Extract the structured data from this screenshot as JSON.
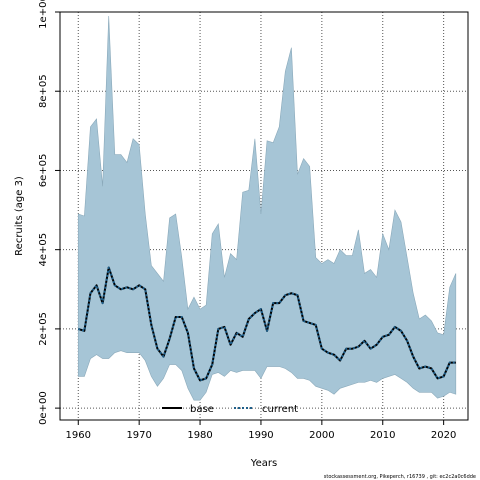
{
  "chart_data": {
    "type": "area",
    "title": "",
    "xlabel": "Years",
    "ylabel": "Recruits (age 3)",
    "xlim": [
      1957,
      2024
    ],
    "ylim": [
      -30000,
      1000000
    ],
    "x_ticks": [
      1960,
      1970,
      1980,
      1990,
      2000,
      2010,
      2020
    ],
    "x_tick_labels": [
      "1960",
      "1970",
      "1980",
      "1990",
      "2000",
      "2010",
      "2020"
    ],
    "y_ticks": [
      0,
      200000,
      400000,
      600000,
      800000,
      1000000
    ],
    "y_tick_labels": [
      "0e+00",
      "2e+05",
      "4e+05",
      "6e+05",
      "8e+05",
      "1e+06"
    ],
    "grid": true,
    "legend_position": "bottom-center",
    "colors": {
      "band": "#a6c5d6",
      "band_edge": "#8aa9ba",
      "base": "#000000",
      "current": "#1f5f8a"
    },
    "years": [
      1960,
      1961,
      1962,
      1963,
      1964,
      1965,
      1966,
      1967,
      1968,
      1969,
      1970,
      1971,
      1972,
      1973,
      1974,
      1975,
      1976,
      1977,
      1978,
      1979,
      1980,
      1981,
      1982,
      1983,
      1984,
      1985,
      1986,
      1987,
      1988,
      1989,
      1990,
      1991,
      1992,
      1993,
      1994,
      1995,
      1996,
      1997,
      1998,
      1999,
      2000,
      2001,
      2002,
      2003,
      2004,
      2005,
      2006,
      2007,
      2008,
      2009,
      2010,
      2011,
      2012,
      2013,
      2014,
      2015,
      2016,
      2017,
      2018,
      2019,
      2020,
      2021,
      2022
    ],
    "series": [
      {
        "name": "base",
        "style": "solid",
        "values": [
          200000,
          195000,
          290000,
          310000,
          265000,
          355000,
          310000,
          300000,
          305000,
          300000,
          310000,
          300000,
          210000,
          150000,
          130000,
          175000,
          230000,
          230000,
          190000,
          100000,
          70000,
          75000,
          110000,
          200000,
          205000,
          160000,
          190000,
          180000,
          225000,
          240000,
          250000,
          195000,
          265000,
          265000,
          285000,
          290000,
          285000,
          220000,
          215000,
          210000,
          150000,
          140000,
          135000,
          120000,
          150000,
          150000,
          155000,
          170000,
          150000,
          160000,
          180000,
          185000,
          205000,
          195000,
          170000,
          130000,
          100000,
          105000,
          100000,
          75000,
          80000,
          115000,
          115000
        ]
      },
      {
        "name": "current",
        "style": "dotted",
        "values": [
          200000,
          195000,
          290000,
          310000,
          265000,
          355000,
          310000,
          300000,
          305000,
          300000,
          310000,
          300000,
          210000,
          150000,
          130000,
          175000,
          230000,
          230000,
          190000,
          100000,
          70000,
          75000,
          110000,
          200000,
          205000,
          160000,
          190000,
          180000,
          225000,
          240000,
          250000,
          195000,
          265000,
          265000,
          285000,
          290000,
          285000,
          220000,
          215000,
          210000,
          150000,
          140000,
          135000,
          120000,
          150000,
          150000,
          155000,
          170000,
          150000,
          160000,
          180000,
          185000,
          205000,
          195000,
          170000,
          130000,
          100000,
          105000,
          100000,
          75000,
          80000,
          115000,
          115000
        ]
      }
    ],
    "interval": {
      "upper": [
        490000,
        485000,
        710000,
        730000,
        560000,
        990000,
        640000,
        640000,
        620000,
        680000,
        665000,
        490000,
        360000,
        340000,
        320000,
        480000,
        490000,
        380000,
        250000,
        280000,
        250000,
        260000,
        440000,
        465000,
        330000,
        390000,
        375000,
        545000,
        550000,
        680000,
        490000,
        675000,
        670000,
        710000,
        850000,
        910000,
        590000,
        630000,
        610000,
        380000,
        365000,
        375000,
        365000,
        400000,
        385000,
        385000,
        450000,
        340000,
        350000,
        330000,
        440000,
        400000,
        500000,
        470000,
        380000,
        290000,
        225000,
        235000,
        220000,
        190000,
        185000,
        305000,
        340000
      ],
      "lower": [
        80000,
        80000,
        125000,
        135000,
        125000,
        125000,
        140000,
        145000,
        140000,
        140000,
        140000,
        120000,
        80000,
        55000,
        75000,
        110000,
        110000,
        95000,
        50000,
        20000,
        20000,
        40000,
        85000,
        90000,
        80000,
        95000,
        90000,
        95000,
        95000,
        95000,
        75000,
        105000,
        105000,
        105000,
        100000,
        90000,
        75000,
        75000,
        70000,
        55000,
        50000,
        45000,
        35000,
        50000,
        55000,
        60000,
        65000,
        65000,
        70000,
        65000,
        75000,
        80000,
        85000,
        75000,
        65000,
        50000,
        40000,
        40000,
        40000,
        25000,
        30000,
        40000,
        35000
      ]
    }
  },
  "legend": {
    "items": [
      {
        "label": "base",
        "style": "solid"
      },
      {
        "label": "current",
        "style": "dotted"
      }
    ]
  },
  "footer": "stockassessment.org, Pikeperch, r16739 , git: ec2c2a0c6dde"
}
